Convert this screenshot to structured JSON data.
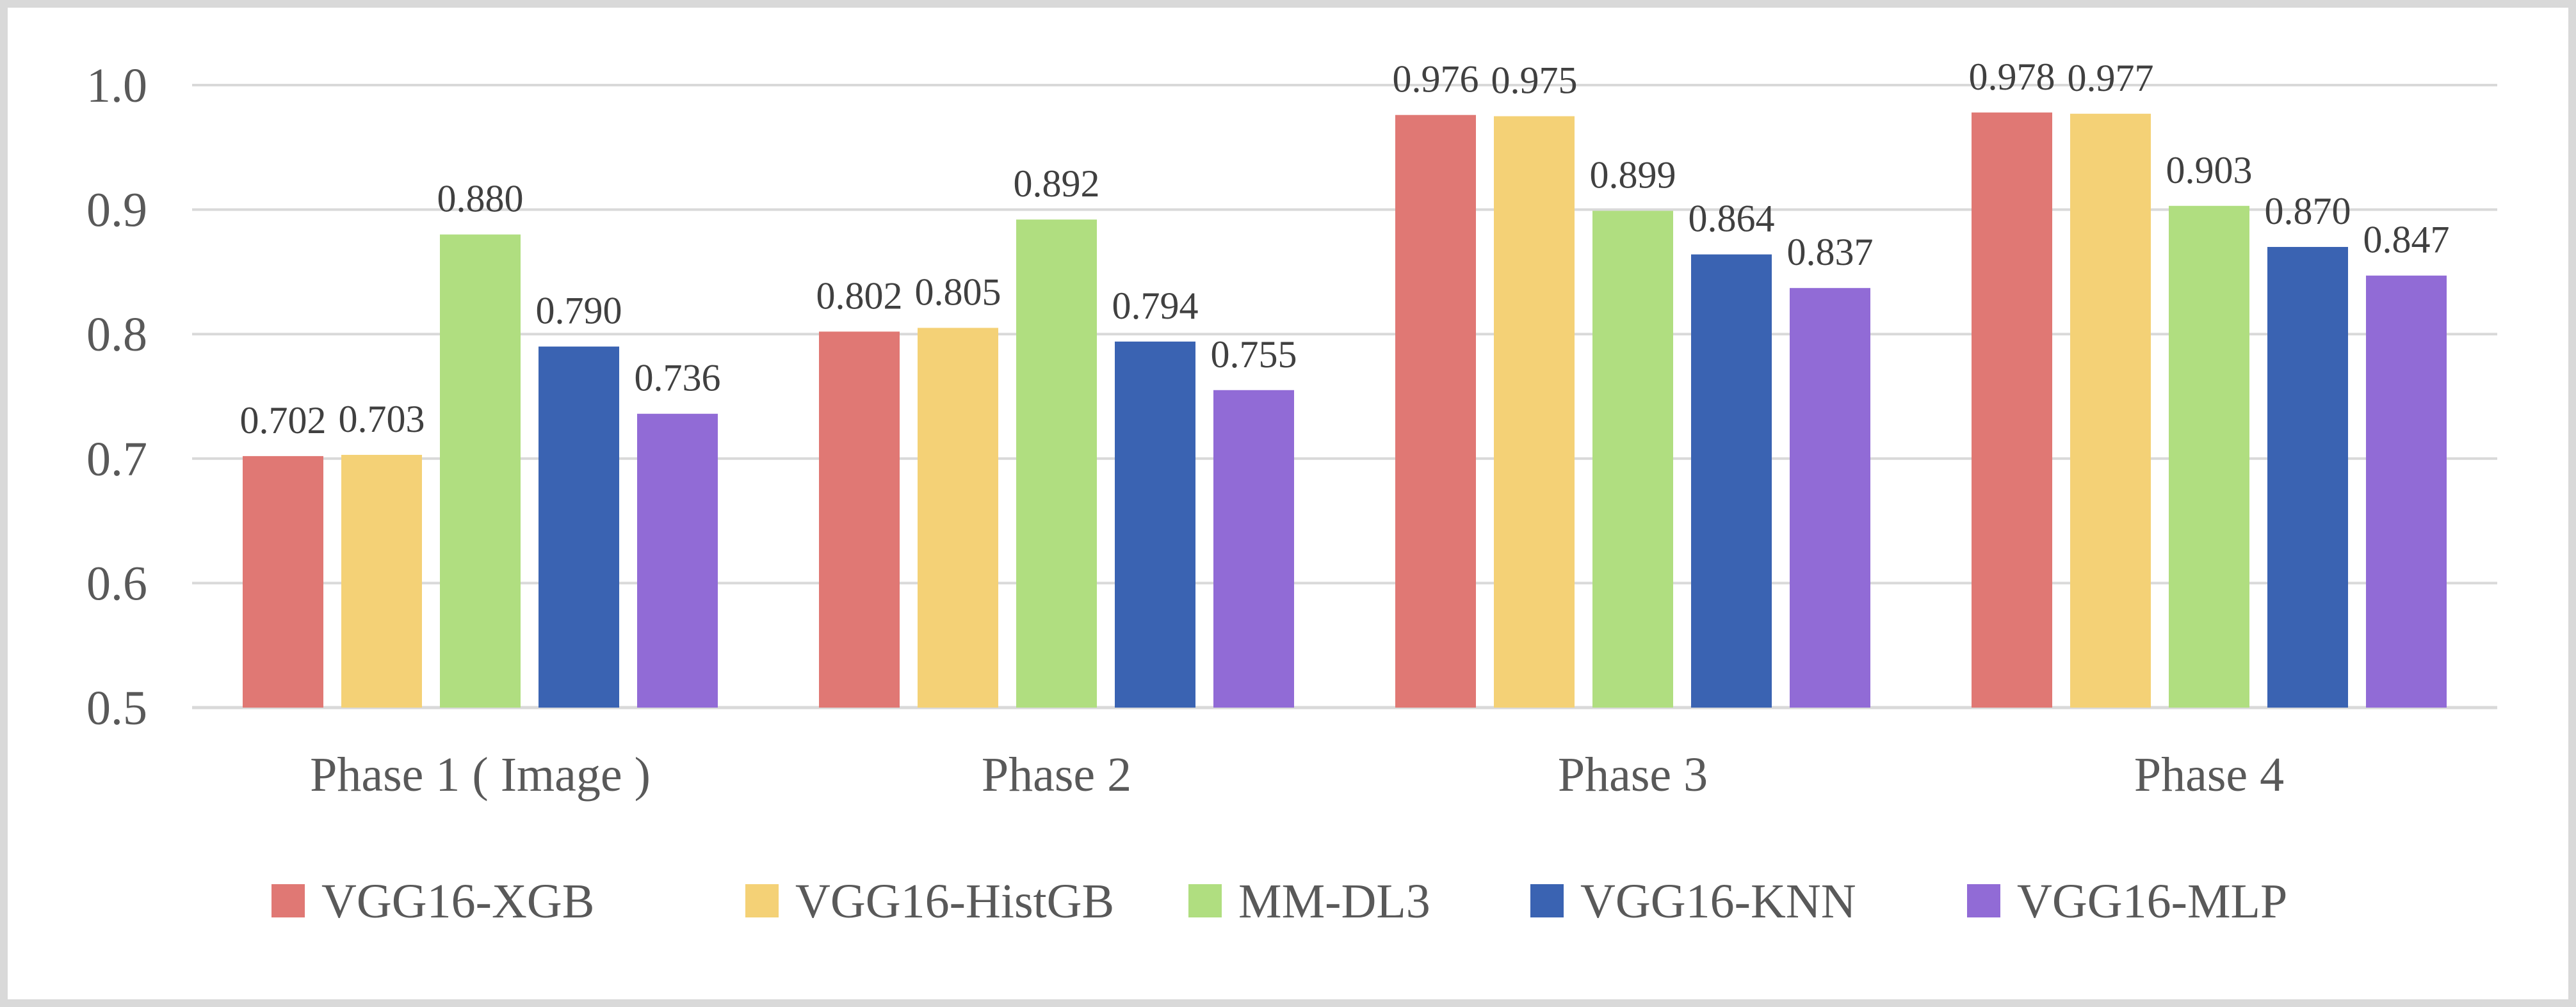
{
  "chart_data": {
    "type": "bar",
    "title": "",
    "xlabel": "",
    "ylabel": "",
    "ylim": [
      0.5,
      1.0
    ],
    "yticks": [
      "0.5",
      "0.6",
      "0.7",
      "0.8",
      "0.9",
      "1.0"
    ],
    "grid": true,
    "legend_position": "bottom",
    "categories": [
      "Phase 1 ( Image )",
      "Phase 2",
      "Phase 3",
      "Phase 4"
    ],
    "series": [
      {
        "name": "VGG16-XGB",
        "color": "#e07874",
        "values": [
          0.702,
          0.802,
          0.976,
          0.978
        ],
        "labels": [
          "0.702",
          "0.802",
          "0.976",
          "0.978"
        ]
      },
      {
        "name": "VGG16-HistGB",
        "color": "#f4d176",
        "values": [
          0.703,
          0.805,
          0.975,
          0.977
        ],
        "labels": [
          "0.703",
          "0.805",
          "0.975",
          "0.977"
        ]
      },
      {
        "name": "MM-DL3",
        "color": "#b0de80",
        "values": [
          0.88,
          0.892,
          0.899,
          0.903
        ],
        "labels": [
          "0.880",
          "0.892",
          "0.899",
          "0.903"
        ]
      },
      {
        "name": "VGG16-KNN",
        "color": "#3a63b2",
        "values": [
          0.79,
          0.794,
          0.864,
          0.87
        ],
        "labels": [
          "0.790",
          "0.794",
          "0.864",
          "0.870"
        ]
      },
      {
        "name": "VGG16-MLP",
        "color": "#916bd6",
        "values": [
          0.736,
          0.755,
          0.837,
          0.847
        ],
        "labels": [
          "0.736",
          "0.755",
          "0.837",
          "0.847"
        ]
      }
    ]
  }
}
